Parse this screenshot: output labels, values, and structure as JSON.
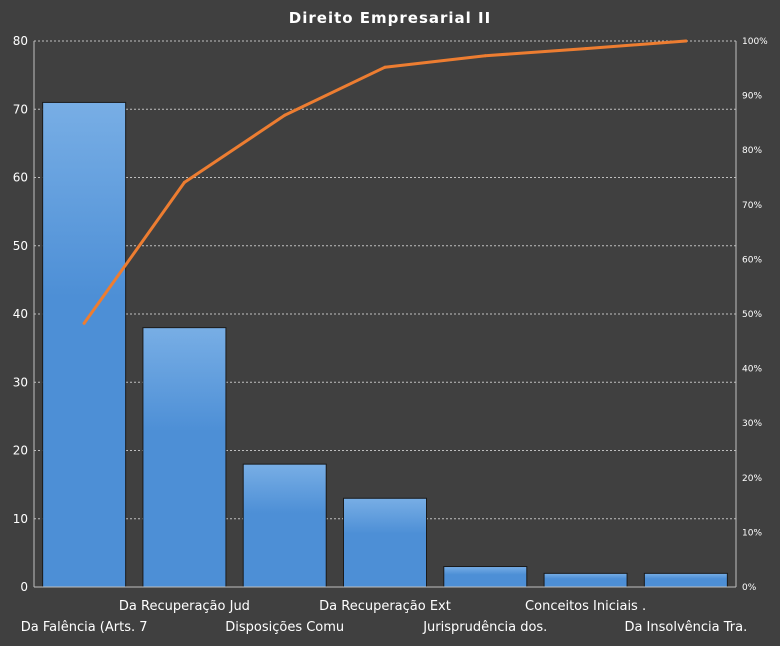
{
  "chart_data": {
    "type": "bar",
    "title": "Direito  Empresarial  II",
    "categories": [
      "Da Falência (Arts. 7",
      "Da Recuperação Jud",
      "Disposições Comu",
      "Da Recuperação Ext",
      "Jurisprudência  dos.",
      "Conceitos Iniciais .",
      "Da Insolvência Tra."
    ],
    "series": [
      {
        "type": "bar",
        "values": [
          71,
          38,
          18,
          13,
          3,
          2,
          2
        ]
      },
      {
        "type": "line",
        "axis": "right",
        "values": [
          48.3,
          74.1,
          86.4,
          95.2,
          97.3,
          98.6,
          100
        ]
      }
    ],
    "ylim": [
      0,
      80
    ],
    "yticks": [
      "0",
      "10",
      "20",
      "30",
      "40",
      "50",
      "60",
      "70",
      "80"
    ],
    "y2lim": [
      0,
      100
    ],
    "y2ticks": [
      "0%",
      "10%",
      "20%",
      "30%",
      "40%",
      "50%",
      "60%",
      "70%",
      "80%",
      "90%",
      "100%"
    ],
    "grid": true,
    "legend": "none",
    "colors": {
      "background": "#404040",
      "bar": "#4d8fd6",
      "bar_top": "#78aee5",
      "line": "#ed7d31",
      "grid": "#bfbfbf"
    }
  }
}
